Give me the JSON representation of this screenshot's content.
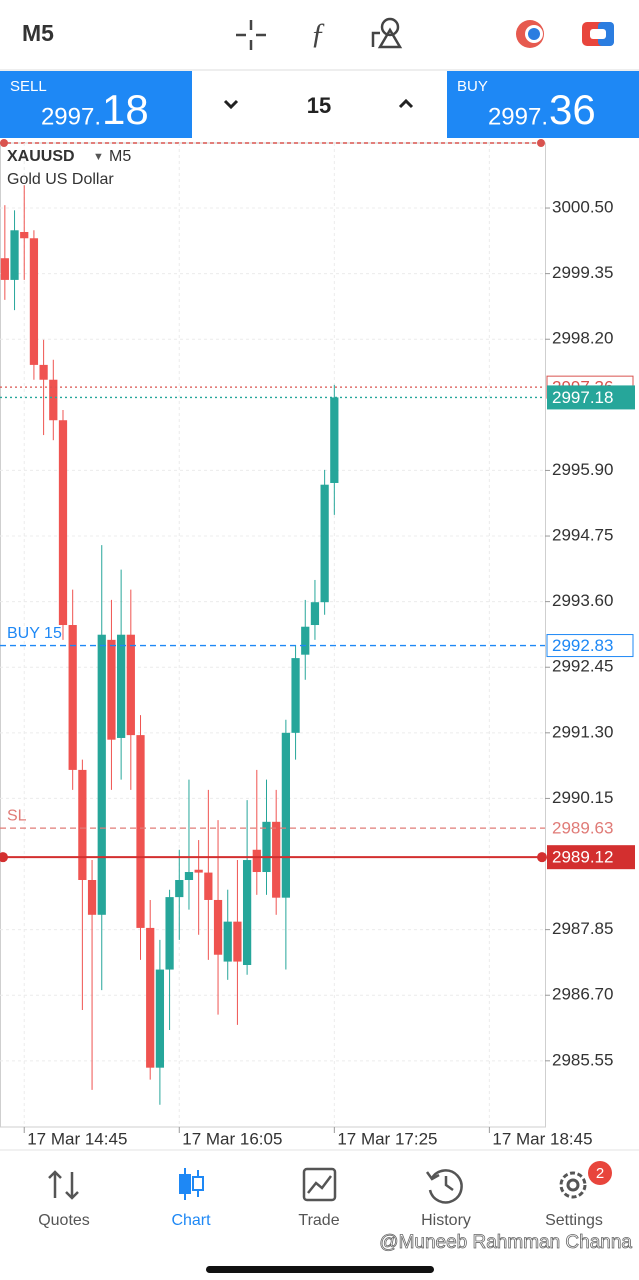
{
  "top_bar": {
    "timeframe": "M5"
  },
  "trade_panel": {
    "sell": {
      "label": "SELL",
      "price_main": "2997.",
      "price_big": "18"
    },
    "volume": "15",
    "buy": {
      "label": "BUY",
      "price_main": "2997.",
      "price_big": "36"
    }
  },
  "chart_data": {
    "type": "candlestick",
    "symbol": "XAUUSD",
    "timeframe": "M5",
    "description": "Gold US Dollar",
    "open": [
      2999.62,
      2999.24,
      3000.08,
      2999.97,
      2997.75,
      2997.49,
      2996.78,
      2993.19,
      2990.65,
      2988.72,
      2988.11,
      2992.93,
      2991.21,
      2993.02,
      2991.26,
      2987.88,
      2985.43,
      2987.15,
      2988.42,
      2988.72,
      2988.9,
      2988.85,
      2988.37,
      2987.29,
      2987.99,
      2987.23,
      2989.25,
      2988.86,
      2989.74,
      2988.41,
      2991.3,
      2992.67,
      2993.19,
      2993.59,
      2995.68
    ],
    "high": [
      3000.55,
      3000.46,
      3000.9,
      3000.11,
      2998.19,
      2997.84,
      2996.96,
      2993.81,
      2990.83,
      2989.07,
      2994.59,
      2993.63,
      2994.16,
      2993.81,
      2991.61,
      2988.37,
      2987.67,
      2988.55,
      2989.25,
      2990.48,
      2989.42,
      2990.3,
      2989.77,
      2988.55,
      2989.07,
      2990.12,
      2990.65,
      2990.48,
      2990.3,
      2991.53,
      2992.84,
      2993.63,
      2993.98,
      2995.91,
      2997.4
    ],
    "low": [
      2998.89,
      2998.71,
      2999.24,
      2997.49,
      2996.52,
      2996.43,
      2992.93,
      2990.3,
      2986.44,
      2985.04,
      2986.79,
      2990.3,
      2990.48,
      2990.3,
      2987.32,
      2985.22,
      2984.78,
      2986.09,
      2987.67,
      2988.2,
      2987.76,
      2987.32,
      2986.36,
      2986.97,
      2986.18,
      2987.06,
      2988.46,
      2988.46,
      2988.11,
      2987.15,
      2990.83,
      2992.23,
      2992.93,
      2993.37,
      2995.12
    ],
    "close": [
      2999.24,
      3000.11,
      2999.97,
      2997.75,
      2997.49,
      2996.78,
      2993.19,
      2990.65,
      2988.72,
      2988.11,
      2993.02,
      2991.18,
      2993.02,
      2991.26,
      2987.88,
      2985.43,
      2987.15,
      2988.42,
      2988.72,
      2988.86,
      2988.85,
      2988.37,
      2987.41,
      2987.99,
      2987.29,
      2989.07,
      2988.86,
      2989.74,
      2988.41,
      2991.3,
      2992.61,
      2993.16,
      2993.59,
      2995.65,
      2997.18
    ],
    "up_color": "#26a69a",
    "down_color": "#ef5350",
    "xlim": [
      -0.5,
      55.74
    ],
    "xticks": [
      {
        "value": 2,
        "label": "17 Mar 14:45"
      },
      {
        "value": 18,
        "label": "17 Mar 16:05"
      },
      {
        "value": 34,
        "label": "17 Mar 17:25"
      },
      {
        "value": 50,
        "label": "17 Mar 18:45"
      }
    ],
    "ylim": [
      2984.39,
      3001.64
    ],
    "yticks": [
      {
        "value": 3000.5,
        "label": "3000.50"
      },
      2999.35,
      {
        "value": 2998.2,
        "label": "2998.20"
      },
      {
        "value": 2995.9,
        "label": "2995.90"
      },
      2994.75,
      {
        "value": 2993.6,
        "label": "2993.60"
      },
      2992.45,
      {
        "value": 2991.3,
        "label": "2991.30"
      },
      2990.15,
      2987.85,
      {
        "value": 2986.7,
        "label": "2986.70"
      },
      2985.55
    ],
    "grid": true,
    "price_lines": [
      {
        "value": 2997.36,
        "color": "#d9534f",
        "style": "dotted",
        "label_style": "outlined"
      },
      {
        "value": 2997.18,
        "color": "#26a69a",
        "style": "dotted",
        "label_style": "filled"
      },
      {
        "label": "BUY 15",
        "value": 2992.83,
        "color": "#1e88f5",
        "style": "dashed",
        "label_style": "outlined"
      },
      {
        "label": "SL",
        "value": 2989.63,
        "color": "#e07b77",
        "style": "dashed",
        "label_style": "plain"
      },
      {
        "value": 2989.12,
        "color": "#d32f2f",
        "style": "solid",
        "label_style": "filled"
      }
    ]
  },
  "bottom_nav": {
    "items": [
      {
        "label": "Quotes"
      },
      {
        "label": "Chart"
      },
      {
        "label": "Trade"
      },
      {
        "label": "History"
      },
      {
        "label": "Settings"
      }
    ],
    "badge": "2"
  },
  "watermark": "@Muneeb Rahmman Channa"
}
